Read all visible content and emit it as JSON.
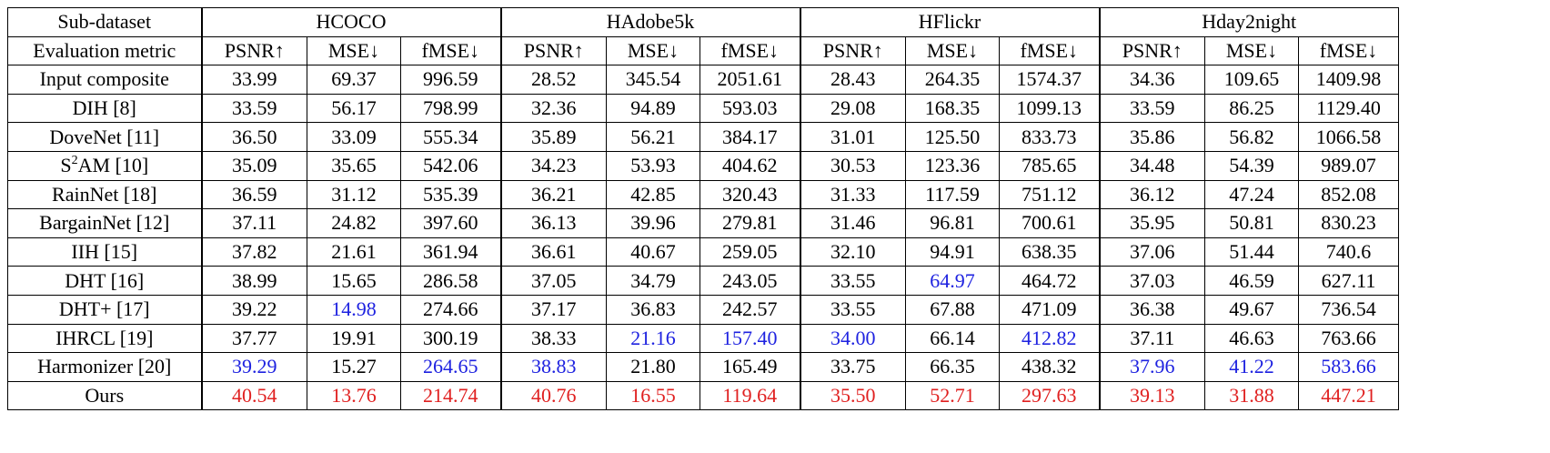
{
  "header": {
    "corner_label": "Sub-dataset",
    "metric_label": "Evaluation metric",
    "datasets": [
      "HCOCO",
      "HAdobe5k",
      "HFlickr",
      "Hday2night"
    ],
    "metrics": [
      "PSNR↑",
      "MSE↓",
      "fMSE↓"
    ]
  },
  "rows": [
    {
      "method": "Input composite",
      "method_sup": "",
      "method_rest": "",
      "values": [
        "33.99",
        "69.37",
        "996.59",
        "28.52",
        "345.54",
        "2051.61",
        "28.43",
        "264.35",
        "1574.37",
        "34.36",
        "109.65",
        "1409.98"
      ],
      "marks": [
        "",
        "",
        "",
        "",
        "",
        "",
        "",
        "",
        "",
        "",
        "",
        ""
      ]
    },
    {
      "method": "DIH [8]",
      "method_sup": "",
      "method_rest": "",
      "values": [
        "33.59",
        "56.17",
        "798.99",
        "32.36",
        "94.89",
        "593.03",
        "29.08",
        "168.35",
        "1099.13",
        "33.59",
        "86.25",
        "1129.40"
      ],
      "marks": [
        "",
        "",
        "",
        "",
        "",
        "",
        "",
        "",
        "",
        "",
        "",
        ""
      ]
    },
    {
      "method": "DoveNet [11]",
      "method_sup": "",
      "method_rest": "",
      "values": [
        "36.50",
        "33.09",
        "555.34",
        "35.89",
        "56.21",
        "384.17",
        "31.01",
        "125.50",
        "833.73",
        "35.86",
        "56.82",
        "1066.58"
      ],
      "marks": [
        "",
        "",
        "",
        "",
        "",
        "",
        "",
        "",
        "",
        "",
        "",
        ""
      ]
    },
    {
      "method": "S",
      "method_sup": "2",
      "method_rest": "AM [10]",
      "values": [
        "35.09",
        "35.65",
        "542.06",
        "34.23",
        "53.93",
        "404.62",
        "30.53",
        "123.36",
        "785.65",
        "34.48",
        "54.39",
        "989.07"
      ],
      "marks": [
        "",
        "",
        "",
        "",
        "",
        "",
        "",
        "",
        "",
        "",
        "",
        ""
      ]
    },
    {
      "method": "RainNet [18]",
      "method_sup": "",
      "method_rest": "",
      "values": [
        "36.59",
        "31.12",
        "535.39",
        "36.21",
        "42.85",
        "320.43",
        "31.33",
        "117.59",
        "751.12",
        "36.12",
        "47.24",
        "852.08"
      ],
      "marks": [
        "",
        "",
        "",
        "",
        "",
        "",
        "",
        "",
        "",
        "",
        "",
        ""
      ]
    },
    {
      "method": "BargainNet [12]",
      "method_sup": "",
      "method_rest": "",
      "values": [
        "37.11",
        "24.82",
        "397.60",
        "36.13",
        "39.96",
        "279.81",
        "31.46",
        "96.81",
        "700.61",
        "35.95",
        "50.81",
        "830.23"
      ],
      "marks": [
        "",
        "",
        "",
        "",
        "",
        "",
        "",
        "",
        "",
        "",
        "",
        ""
      ]
    },
    {
      "method": "IIH [15]",
      "method_sup": "",
      "method_rest": "",
      "values": [
        "37.82",
        "21.61",
        "361.94",
        "36.61",
        "40.67",
        "259.05",
        "32.10",
        "94.91",
        "638.35",
        "37.06",
        "51.44",
        "740.6"
      ],
      "marks": [
        "",
        "",
        "",
        "",
        "",
        "",
        "",
        "",
        "",
        "",
        "",
        ""
      ]
    },
    {
      "method": "DHT [16]",
      "method_sup": "",
      "method_rest": "",
      "values": [
        "38.99",
        "15.65",
        "286.58",
        "37.05",
        "34.79",
        "243.05",
        "33.55",
        "64.97",
        "464.72",
        "37.03",
        "46.59",
        "627.11"
      ],
      "marks": [
        "",
        "",
        "",
        "",
        "",
        "",
        "",
        "second",
        "",
        "",
        "",
        ""
      ]
    },
    {
      "method": "DHT+ [17]",
      "method_sup": "",
      "method_rest": "",
      "values": [
        "39.22",
        "14.98",
        "274.66",
        "37.17",
        "36.83",
        "242.57",
        "33.55",
        "67.88",
        "471.09",
        "36.38",
        "49.67",
        "736.54"
      ],
      "marks": [
        "",
        "second",
        "",
        "",
        "",
        "",
        "",
        "",
        "",
        "",
        "",
        ""
      ]
    },
    {
      "method": "IHRCL [19]",
      "method_sup": "",
      "method_rest": "",
      "values": [
        "37.77",
        "19.91",
        "300.19",
        "38.33",
        "21.16",
        "157.40",
        "34.00",
        "66.14",
        "412.82",
        "37.11",
        "46.63",
        "763.66"
      ],
      "marks": [
        "",
        "",
        "",
        "",
        "second",
        "second",
        "second",
        "",
        "second",
        "",
        "",
        ""
      ]
    },
    {
      "method": "Harmonizer [20]",
      "method_sup": "",
      "method_rest": "",
      "values": [
        "39.29",
        "15.27",
        "264.65",
        "38.83",
        "21.80",
        "165.49",
        "33.75",
        "66.35",
        "438.32",
        "37.96",
        "41.22",
        "583.66"
      ],
      "marks": [
        "second",
        "",
        "second",
        "second",
        "",
        "",
        "",
        "",
        "",
        "second",
        "second",
        "second"
      ]
    },
    {
      "method": "Ours",
      "method_sup": "",
      "method_rest": "",
      "values": [
        "40.54",
        "13.76",
        "214.74",
        "40.76",
        "16.55",
        "119.64",
        "35.50",
        "52.71",
        "297.63",
        "39.13",
        "31.88",
        "447.21"
      ],
      "marks": [
        "best",
        "best",
        "best",
        "best",
        "best",
        "best",
        "best",
        "best",
        "best",
        "best",
        "best",
        "best"
      ]
    }
  ],
  "colors": {
    "best": "#e02020",
    "second": "#1e22e0",
    "text": "#000000",
    "border": "#000000"
  }
}
